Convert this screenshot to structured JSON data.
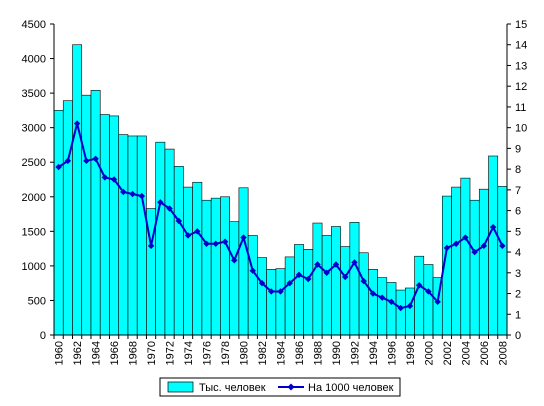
{
  "chart_data": {
    "type": "bar",
    "categories": [
      "1960",
      "1961",
      "1962",
      "1963",
      "1964",
      "1965",
      "1966",
      "1967",
      "1968",
      "1969",
      "1970",
      "1971",
      "1972",
      "1973",
      "1974",
      "1975",
      "1976",
      "1977",
      "1978",
      "1979",
      "1980",
      "1981",
      "1982",
      "1983",
      "1984",
      "1985",
      "1986",
      "1987",
      "1988",
      "1989",
      "1990",
      "1991",
      "1992",
      "1993",
      "1994",
      "1995",
      "1996",
      "1997",
      "1998",
      "1999",
      "2000",
      "2001",
      "2002",
      "2003",
      "2004",
      "2005",
      "2006",
      "2007",
      "2008"
    ],
    "x_tick_labels": [
      "1960",
      "1962",
      "1964",
      "1966",
      "1968",
      "1970",
      "1972",
      "1974",
      "1976",
      "1978",
      "1980",
      "1982",
      "1984",
      "1986",
      "1988",
      "1990",
      "1992",
      "1994",
      "1996",
      "1998",
      "2000",
      "2002",
      "2004",
      "2006",
      "2008"
    ],
    "series": [
      {
        "name": "Тыс. человек",
        "type": "bar",
        "axis": "left",
        "color": "#00ffff",
        "values": [
          3250,
          3390,
          4200,
          3470,
          3540,
          3190,
          3170,
          2900,
          2880,
          2880,
          1830,
          2790,
          2690,
          2440,
          2140,
          2210,
          1950,
          1980,
          2000,
          1640,
          2130,
          1440,
          1120,
          950,
          960,
          1130,
          1310,
          1240,
          1620,
          1440,
          1570,
          1280,
          1630,
          1190,
          950,
          830,
          760,
          650,
          680,
          1140,
          1020,
          830,
          2010,
          2140,
          2270,
          1950,
          2110,
          2590,
          2150
        ]
      },
      {
        "name": "На 1000 человек",
        "type": "line",
        "axis": "right",
        "color": "#0000cc",
        "values": [
          8.1,
          8.4,
          10.2,
          8.4,
          8.5,
          7.6,
          7.5,
          6.9,
          6.8,
          6.7,
          4.3,
          6.4,
          6.1,
          5.5,
          4.8,
          5.0,
          4.4,
          4.4,
          4.5,
          3.6,
          4.7,
          3.1,
          2.5,
          2.1,
          2.1,
          2.5,
          2.9,
          2.7,
          3.4,
          3.0,
          3.4,
          2.8,
          3.5,
          2.6,
          2.0,
          1.8,
          1.6,
          1.3,
          1.4,
          2.4,
          2.1,
          1.6,
          4.2,
          4.4,
          4.7,
          4.0,
          4.3,
          5.2,
          4.3
        ]
      }
    ],
    "y_left": {
      "min": 0,
      "max": 4500,
      "ticks": [
        "0",
        "500",
        "1000",
        "1500",
        "2000",
        "2500",
        "3000",
        "3500",
        "4000",
        "4500"
      ]
    },
    "y_right": {
      "min": 0,
      "max": 15,
      "ticks": [
        "0",
        "1",
        "2",
        "3",
        "4",
        "5",
        "6",
        "7",
        "8",
        "9",
        "10",
        "11",
        "12",
        "13",
        "14",
        "15"
      ]
    },
    "title": "",
    "xlabel": "",
    "ylabel": "",
    "grid": false,
    "legend_position": "bottom",
    "legend": {
      "bar_label": "Тыс. человек",
      "line_label": "На 1000 человек"
    }
  }
}
